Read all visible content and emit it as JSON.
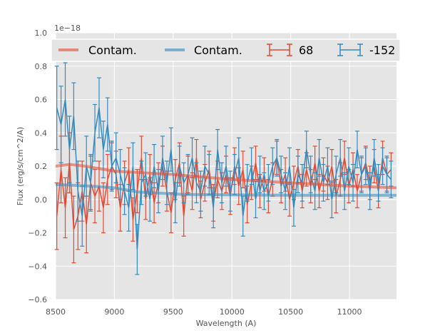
{
  "chart_data": {
    "type": "line",
    "title": "",
    "xlabel": "Wavelength (A)",
    "ylabel": "Flux (erg/s/cm^2/A)",
    "y_offset_label": "1e−18",
    "xlim": [
      8500,
      11400
    ],
    "ylim": [
      -0.6,
      1.0
    ],
    "xticks": [
      "8500",
      "9000",
      "9500",
      "10000",
      "10500",
      "11000"
    ],
    "xtick_values": [
      8500,
      9000,
      9500,
      10000,
      10500,
      11000
    ],
    "yticks": [
      "−0.6",
      "−0.4",
      "−0.2",
      "0.0",
      "0.2",
      "0.4",
      "0.6",
      "0.8",
      "1.0"
    ],
    "ytick_values": [
      -0.6,
      -0.4,
      -0.2,
      0.0,
      0.2,
      0.4,
      0.6,
      0.8,
      1.0
    ],
    "grid": true,
    "legend_placement": "top",
    "x_start": 8510,
    "x_step": 36,
    "contam": [
      {
        "name": "Contam.",
        "color": "#E24A33",
        "x": [
          8500,
          8620,
          8750,
          9000,
          9500,
          10000,
          10500,
          11000,
          11400
        ],
        "y": [
          0.2,
          0.21,
          0.2,
          0.17,
          0.15,
          0.12,
          0.1,
          0.08,
          0.07
        ]
      },
      {
        "name": "Contam.",
        "color": "#348ABD",
        "x": [
          8500,
          8800,
          9000,
          9200,
          9600,
          10000,
          10500,
          11000,
          11400
        ],
        "y": [
          0.09,
          0.08,
          0.07,
          0.045,
          0.03,
          0.028,
          0.025,
          0.025,
          0.025
        ]
      }
    ],
    "series": [
      {
        "name": "68",
        "color": "#E24A33",
        "values": [
          -0.1,
          0.18,
          -0.05,
          0.22,
          -0.18,
          -0.1,
          0.05,
          -0.15,
          0.1,
          0.02,
          0.08,
          -0.05,
          0.12,
          0.2,
          0.15,
          -0.05,
          0.1,
          0.18,
          -0.12,
          0.05,
          0.25,
          0.0,
          0.15,
          -0.02,
          0.1,
          0.2,
          0.05,
          -0.08,
          0.12,
          0.22,
          -0.1,
          0.15,
          0.05,
          0.25,
          0.0,
          0.1,
          0.18,
          -0.02,
          0.12,
          0.05,
          0.15,
          0.02,
          0.2,
          0.08,
          0.18,
          -0.03,
          0.1,
          0.22,
          0.05,
          0.15,
          0.02,
          0.12,
          0.25,
          0.08,
          0.15,
          0.0,
          0.1,
          0.2,
          0.05,
          0.18,
          0.08,
          0.22,
          0.05,
          0.15,
          0.1,
          0.2,
          0.02,
          0.12,
          0.25,
          0.08,
          0.18,
          0.05,
          0.15,
          0.22,
          0.1,
          0.2,
          0.05,
          0.25,
          0.15,
          0.18
        ],
        "yerr": [
          0.2,
          0.2,
          0.18,
          0.18,
          0.2,
          0.2,
          0.18,
          0.17,
          0.16,
          0.16,
          0.15,
          0.15,
          0.15,
          0.14,
          0.14,
          0.14,
          0.13,
          0.13,
          0.13,
          0.13,
          0.13,
          0.12,
          0.12,
          0.12,
          0.12,
          0.12,
          0.12,
          0.12,
          0.12,
          0.12,
          0.12,
          0.11,
          0.11,
          0.11,
          0.11,
          0.11,
          0.11,
          0.11,
          0.11,
          0.11,
          0.11,
          0.11,
          0.11,
          0.11,
          0.11,
          0.11,
          0.1,
          0.1,
          0.1,
          0.1,
          0.1,
          0.1,
          0.1,
          0.1,
          0.1,
          0.1,
          0.1,
          0.1,
          0.1,
          0.1,
          0.1,
          0.1,
          0.1,
          0.1,
          0.1,
          0.1,
          0.1,
          0.1,
          0.1,
          0.1,
          0.1,
          0.1,
          0.1,
          0.1,
          0.1,
          0.1,
          0.1,
          0.1,
          0.1,
          0.1
        ]
      },
      {
        "name": "-152",
        "color": "#348ABD",
        "values": [
          0.55,
          0.45,
          0.6,
          0.3,
          0.5,
          0.05,
          -0.1,
          0.2,
          0.1,
          0.4,
          0.55,
          0.3,
          0.45,
          0.2,
          0.25,
          0.15,
          0.05,
          -0.05,
          0.2,
          -0.3,
          0.1,
          0.15,
          0.0,
          0.2,
          0.05,
          0.25,
          0.1,
          0.3,
          -0.02,
          0.2,
          0.1,
          0.15,
          0.25,
          0.1,
          0.05,
          0.2,
          0.15,
          -0.05,
          0.3,
          0.1,
          0.2,
          0.05,
          0.15,
          0.25,
          -0.1,
          0.1,
          0.2,
          0.0,
          0.15,
          0.05,
          0.1,
          0.2,
          0.25,
          0.15,
          0.05,
          0.2,
          -0.05,
          0.15,
          0.1,
          0.3,
          0.15,
          0.05,
          0.25,
          0.1,
          0.2,
          0.0,
          0.15,
          0.25,
          0.05,
          0.2,
          0.1,
          0.3,
          0.15,
          0.2,
          0.05,
          0.25,
          0.1,
          0.2,
          0.15,
          0.12
        ],
        "yerr": [
          0.25,
          0.23,
          0.22,
          0.2,
          0.2,
          0.18,
          0.18,
          0.18,
          0.17,
          0.17,
          0.18,
          0.17,
          0.16,
          0.15,
          0.15,
          0.15,
          0.14,
          0.14,
          0.14,
          0.15,
          0.13,
          0.13,
          0.13,
          0.13,
          0.13,
          0.13,
          0.13,
          0.13,
          0.12,
          0.12,
          0.12,
          0.12,
          0.12,
          0.12,
          0.12,
          0.12,
          0.12,
          0.12,
          0.12,
          0.12,
          0.12,
          0.12,
          0.12,
          0.12,
          0.12,
          0.11,
          0.11,
          0.11,
          0.11,
          0.11,
          0.11,
          0.11,
          0.11,
          0.11,
          0.11,
          0.11,
          0.11,
          0.11,
          0.11,
          0.11,
          0.11,
          0.11,
          0.11,
          0.11,
          0.11,
          0.11,
          0.11,
          0.11,
          0.11,
          0.11,
          0.11,
          0.11,
          0.11,
          0.11,
          0.11,
          0.11,
          0.11,
          0.11,
          0.11,
          0.11
        ]
      }
    ]
  }
}
